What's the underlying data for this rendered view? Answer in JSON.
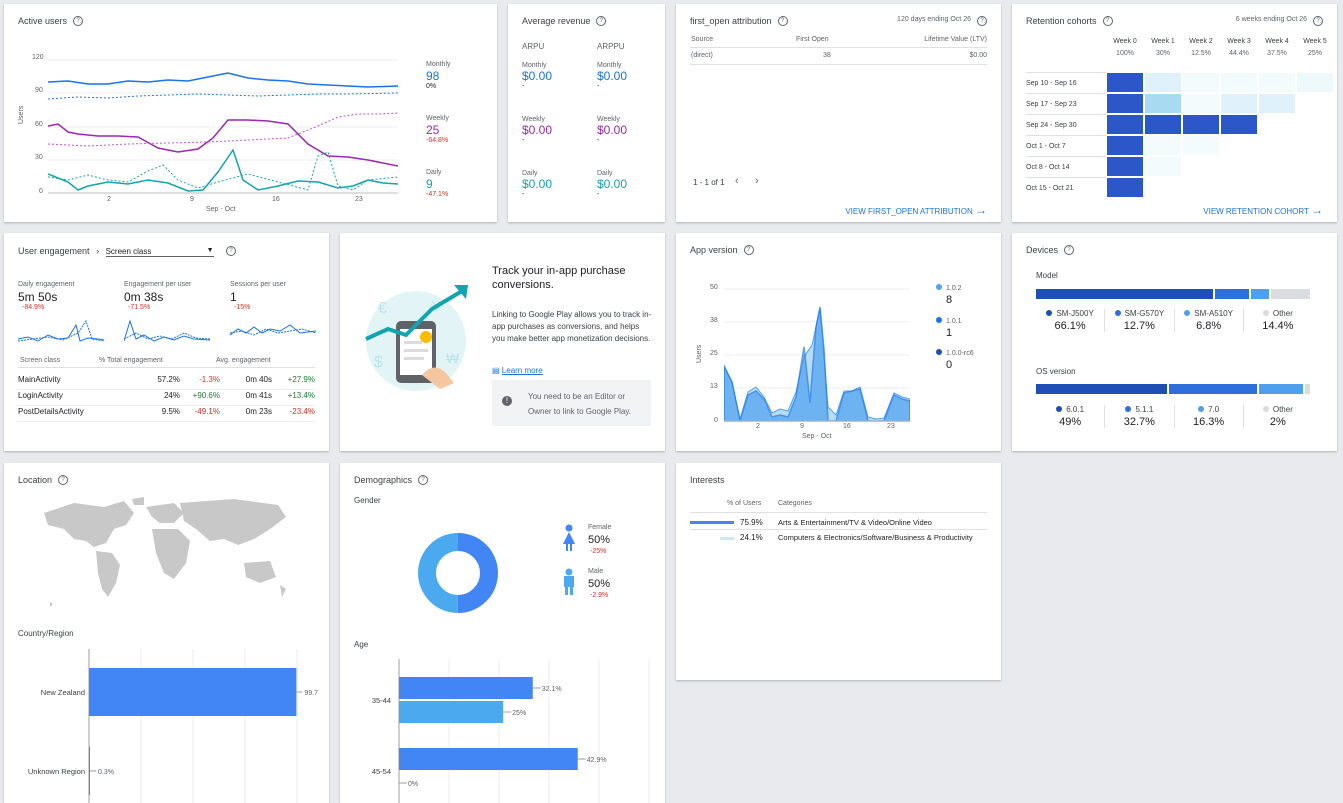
{
  "active_users": {
    "title": "Active users",
    "ylabel": "Users",
    "xlabel": "Sep - Oct",
    "yticks": [
      "120",
      "90",
      "60",
      "30",
      "0"
    ],
    "xticks": [
      "2",
      "9",
      "16",
      "23"
    ],
    "legend": [
      {
        "label": "Monthly",
        "value": "98",
        "change": "0%",
        "color": "#1a73e8"
      },
      {
        "label": "Weekly",
        "value": "25",
        "change": "-64.8%",
        "color": "#9c27b0"
      },
      {
        "label": "Daily",
        "value": "9",
        "change": "-47.1%",
        "color": "#12a4af"
      }
    ]
  },
  "avg_revenue": {
    "title": "Average revenue",
    "col1": "ARPU",
    "col2": "ARPPU",
    "rows": [
      {
        "label": "Monthly",
        "v1": "$0.00",
        "v2": "$0.00",
        "d1": "-",
        "d2": "-",
        "color": "#1a73e8"
      },
      {
        "label": "Weekly",
        "v1": "$0.00",
        "v2": "$0.00",
        "d1": "-",
        "d2": "-",
        "color": "#9c27b0"
      },
      {
        "label": "Daily",
        "v1": "$0.00",
        "v2": "$0.00",
        "d1": "-",
        "d2": "-",
        "color": "#12a4af"
      }
    ]
  },
  "first_open": {
    "title": "first_open attribution",
    "range": "120 days ending Oct 26",
    "headers": [
      "Source",
      "First Open",
      "Lifetime Value (LTV)"
    ],
    "row": [
      "(direct)",
      "38",
      "$0.00"
    ],
    "pager": "1 - 1 of 1",
    "link": "VIEW FIRST_OPEN ATTRIBUTION"
  },
  "retention": {
    "title": "Retention cohorts",
    "range": "6 weeks ending Oct 26",
    "weeks": [
      "Week 0",
      "Week 1",
      "Week 2",
      "Week 3",
      "Week 4",
      "Week 5"
    ],
    "pcts": [
      "100%",
      "30%",
      "12.5%",
      "44.4%",
      "37.5%",
      "25%"
    ],
    "cohorts": [
      "Sep 10 - Sep 16",
      "Sep 17 - Sep 23",
      "Sep 24 - Sep 30",
      "Oct 1 - Oct 7",
      "Oct 8 - Oct 14",
      "Oct 15 - Oct 21"
    ],
    "link": "VIEW RETENTION COHORT"
  },
  "engagement": {
    "title": "User engagement",
    "selector": "Screen class",
    "metrics": [
      {
        "label": "Daily engagement",
        "value": "5m 50s",
        "change": "-84.9%"
      },
      {
        "label": "Engagement per user",
        "value": "0m 38s",
        "change": "-71.5%"
      },
      {
        "label": "Sessions per user",
        "value": "1",
        "change": "-15%"
      }
    ],
    "headers": [
      "Screen class",
      "% Total engagement",
      "Avg. engagement"
    ],
    "rows": [
      {
        "name": "MainActivity",
        "pct": "57.2%",
        "pct_change": "-1.3%",
        "avg": "0m 40s",
        "avg_change": "+27.9%"
      },
      {
        "name": "LoginActivity",
        "pct": "24%",
        "pct_change": "+90.6%",
        "avg": "0m 41s",
        "avg_change": "+13.4%"
      },
      {
        "name": "PostDetailsActivity",
        "pct": "9.5%",
        "pct_change": "-49.1%",
        "avg": "0m 23s",
        "avg_change": "-23.4%"
      }
    ]
  },
  "promo": {
    "heading": "Track your in-app purchase conversions.",
    "body": "Linking to Google Play allows you to track in-app purchases as conversions, and helps you make better app monetization decisions.",
    "learn_more": "Learn more",
    "notice": "You need to be an Editor or Owner to link to Google Play."
  },
  "app_version": {
    "title": "App version",
    "ylabel": "Users",
    "xlabel": "Sep - Oct",
    "yticks": [
      "50",
      "38",
      "25",
      "13",
      "0"
    ],
    "xticks": [
      "2",
      "9",
      "16",
      "23"
    ],
    "legend": [
      {
        "label": "1.0.2",
        "value": "8",
        "color": "#4fa3f0"
      },
      {
        "label": "1.0.1",
        "value": "1",
        "color": "#1a73e8"
      },
      {
        "label": "1.0.0-rc6",
        "value": "0",
        "color": "#1d4fb5"
      }
    ]
  },
  "devices": {
    "title": "Devices",
    "model_label": "Model",
    "models": [
      {
        "name": "SM-J500Y",
        "pct": "66.1%",
        "color": "#1d4fb5"
      },
      {
        "name": "SM-G570Y",
        "pct": "12.7%",
        "color": "#2f6fdc"
      },
      {
        "name": "SM-A510Y",
        "pct": "6.8%",
        "color": "#4ea0ef"
      },
      {
        "name": "Other",
        "pct": "14.4%",
        "color": "#dadce0"
      }
    ],
    "os_label": "OS version",
    "os": [
      {
        "name": "6.0.1",
        "pct": "49%",
        "color": "#1d4fb5"
      },
      {
        "name": "5.1.1",
        "pct": "32.7%",
        "color": "#2f6fdc"
      },
      {
        "name": "7.0",
        "pct": "16.3%",
        "color": "#4ea0ef"
      },
      {
        "name": "Other",
        "pct": "2%",
        "color": "#dadce0"
      }
    ]
  },
  "location": {
    "title": "Location",
    "country_label": "Country/Region",
    "bars": [
      {
        "name": "New Zealand",
        "value": "99.7",
        "label": "99.7"
      },
      {
        "name": "Unknown Region",
        "value": "0.3",
        "label": "0.3%"
      }
    ]
  },
  "demographics": {
    "title": "Demographics",
    "gender_label": "Gender",
    "genders": [
      {
        "name": "Female",
        "pct": "50%",
        "change": "-25%"
      },
      {
        "name": "Male",
        "pct": "50%",
        "change": "-2.9%"
      }
    ],
    "age_label": "Age",
    "ages": [
      {
        "name": "35-44",
        "a": 32.1,
        "b": 25,
        "a_label": "32.1%",
        "b_label": "25%"
      },
      {
        "name": "45-54",
        "a": 42.9,
        "b": 0,
        "a_label": "42.9%",
        "b_label": "0%"
      }
    ]
  },
  "interests": {
    "title": "Interests",
    "headers": [
      "% of Users",
      "Categories"
    ],
    "rows": [
      {
        "pct": "75.9%",
        "cat": "Arts & Entertainment/TV & Video/Online Video"
      },
      {
        "pct": "24.1%",
        "cat": "Computers & Electronics/Software/Business & Productivity"
      }
    ]
  }
}
